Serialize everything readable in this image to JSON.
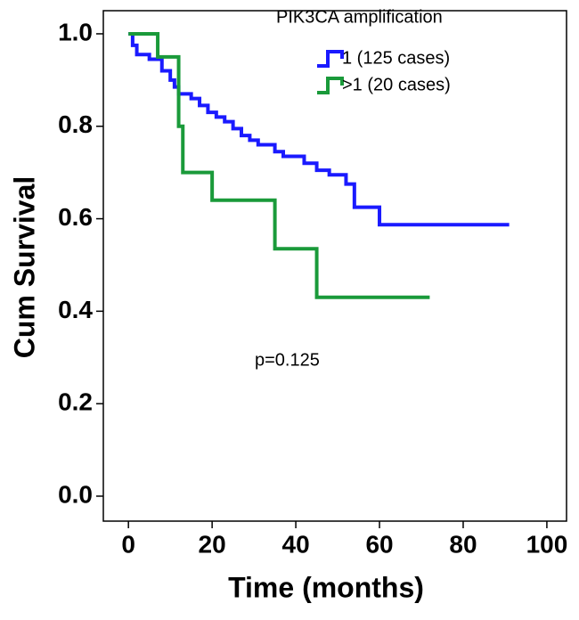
{
  "chart_data": {
    "type": "line",
    "step": "post",
    "xlabel": "Time (months)",
    "ylabel": "Cum Survival",
    "legend_title": "PIK3CA amplification",
    "legend": "top-right",
    "annotation": "p=0.125",
    "xlim": [
      -6,
      104.7
    ],
    "ylim": [
      -0.054,
      1.05
    ],
    "xticks": [
      0,
      20,
      40,
      60,
      80,
      100
    ],
    "yticks": [
      {
        "value": 0,
        "label": "0.0"
      },
      0.2,
      0.4,
      0.6,
      0.8,
      {
        "value": 1,
        "label": "1.0"
      }
    ],
    "series": [
      {
        "name": "1 (125 cases)",
        "color": "#1a1aff",
        "x": [
          0,
          1,
          2,
          5,
          8,
          10,
          11,
          12,
          15,
          17,
          19,
          21,
          23,
          25,
          27,
          29,
          31,
          35,
          37,
          42,
          45,
          48,
          52,
          54,
          60,
          91
        ],
        "values": [
          1.0,
          0.975,
          0.955,
          0.945,
          0.92,
          0.9,
          0.885,
          0.87,
          0.86,
          0.845,
          0.83,
          0.82,
          0.81,
          0.795,
          0.78,
          0.77,
          0.76,
          0.745,
          0.735,
          0.72,
          0.705,
          0.695,
          0.675,
          0.625,
          0.587,
          0.587
        ]
      },
      {
        "name": ">1 (20 cases)",
        "color": "#1a9a3a",
        "x": [
          0,
          7,
          12,
          13,
          20,
          35,
          45,
          72
        ],
        "values": [
          1.0,
          0.95,
          0.8,
          0.7,
          0.64,
          0.535,
          0.43,
          0.43
        ]
      }
    ]
  }
}
